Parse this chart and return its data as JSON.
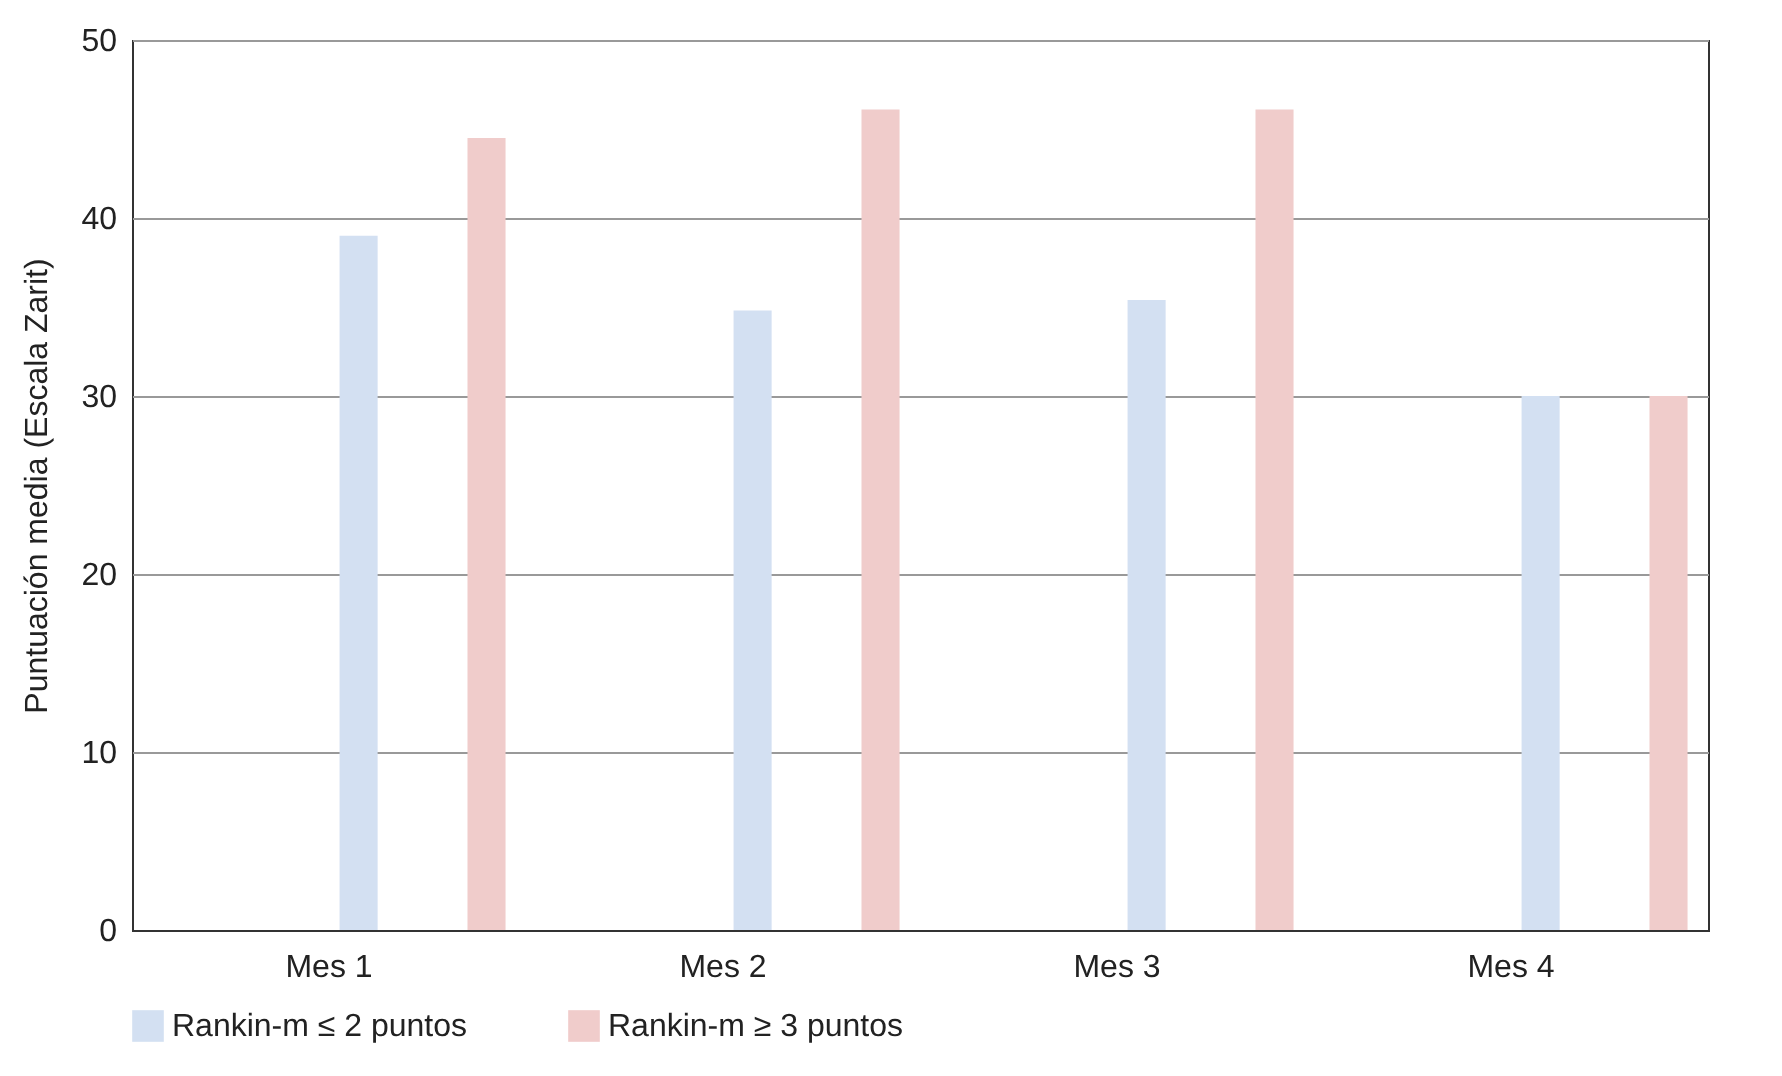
{
  "chart_data": {
    "type": "bar",
    "ylabel": "Puntuación media (Escala Zarit)",
    "categories": [
      "Mes 1",
      "Mes 2",
      "Mes 3",
      "Mes 4"
    ],
    "series": [
      {
        "name": "Rankin-m ≤ 2 puntos",
        "color": "#d3e0f2",
        "values": [
          39.0,
          34.8,
          35.4,
          30.0
        ]
      },
      {
        "name": "Rankin-m ≥ 3 puntos",
        "color": "#f0cccb",
        "values": [
          44.5,
          46.1,
          46.1,
          30.0
        ]
      }
    ],
    "ylim": [
      0,
      50
    ],
    "yticks": [
      0,
      10,
      20,
      30,
      40,
      50
    ],
    "grid": "y",
    "legend": "bottom"
  }
}
